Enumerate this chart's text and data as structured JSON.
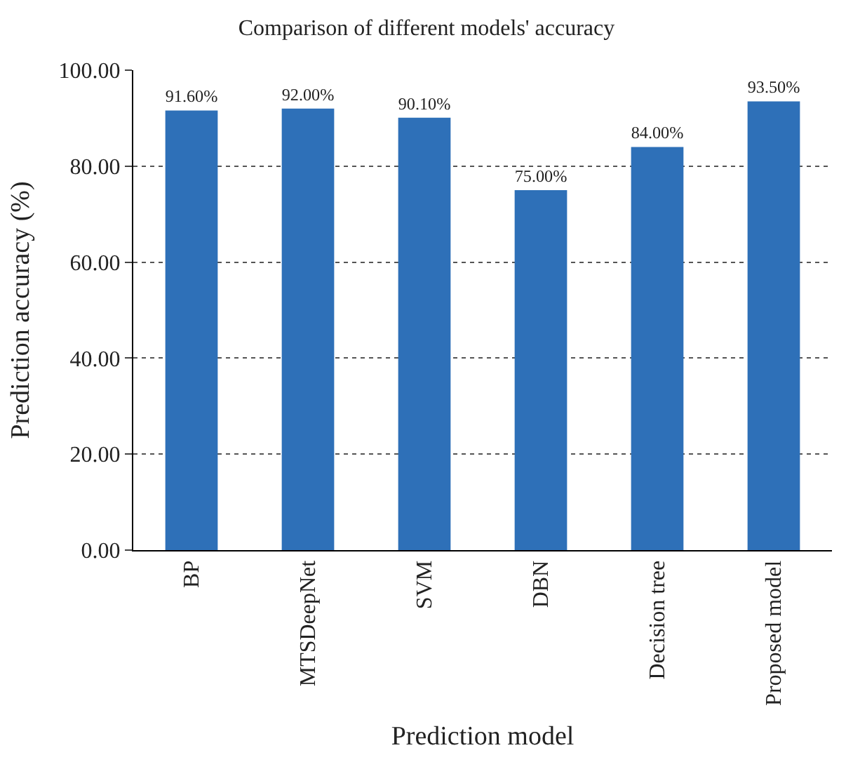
{
  "chart_data": {
    "type": "bar",
    "title": "Comparison of different models' accuracy",
    "xlabel": "Prediction model",
    "ylabel": "Prediction accuracy (%)",
    "categories": [
      "BP",
      "MTSDeepNet",
      "SVM",
      "DBN",
      "Decision tree",
      "Proposed model"
    ],
    "values": [
      91.6,
      92.0,
      90.1,
      75.0,
      84.0,
      93.5
    ],
    "value_labels": [
      "91.60%",
      "92.00%",
      "90.10%",
      "75.00%",
      "84.00%",
      "93.50%"
    ],
    "color": "#2e70b8",
    "ylim": [
      0,
      100
    ],
    "yticks": [
      {
        "value": 0,
        "label": "0.00"
      },
      {
        "value": 20,
        "label": "20.00"
      },
      {
        "value": 40,
        "label": "40.00"
      },
      {
        "value": 60,
        "label": "60.00"
      },
      {
        "value": 80,
        "label": "80.00"
      },
      {
        "value": 100,
        "label": "100.00"
      }
    ],
    "grid": "y",
    "line_style": "dotted"
  }
}
